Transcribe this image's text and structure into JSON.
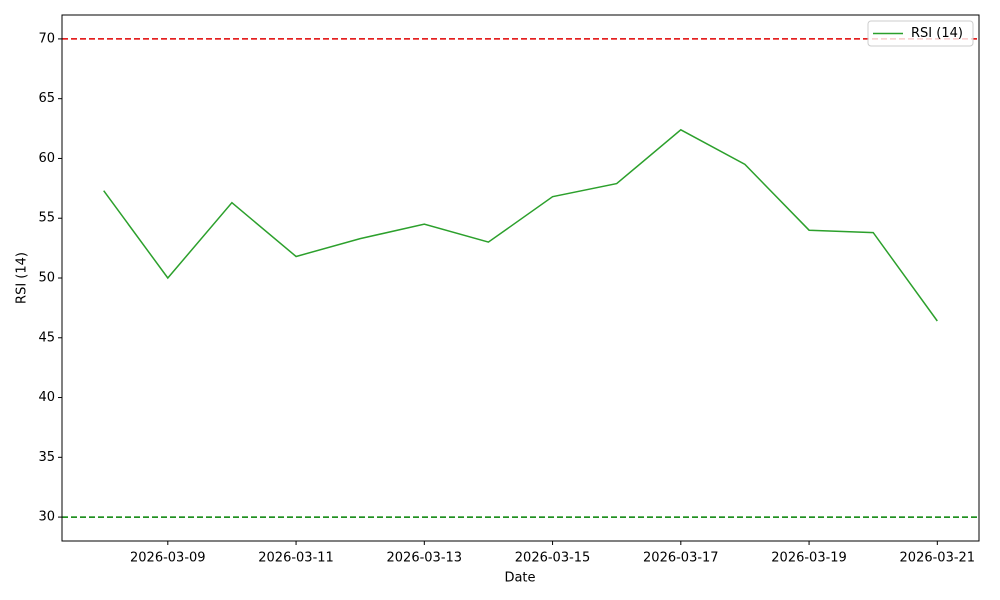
{
  "chart_data": {
    "type": "line",
    "xlabel": "Date",
    "ylabel": "RSI (14)",
    "x": [
      "2026-03-08",
      "2026-03-09",
      "2026-03-10",
      "2026-03-11",
      "2026-03-12",
      "2026-03-13",
      "2026-03-14",
      "2026-03-15",
      "2026-03-16",
      "2026-03-17",
      "2026-03-18",
      "2026-03-19",
      "2026-03-20",
      "2026-03-21"
    ],
    "series": [
      {
        "name": "RSI (14)",
        "color": "#2ca02c",
        "values": [
          57.3,
          50.0,
          56.3,
          51.8,
          53.3,
          54.5,
          53.0,
          56.8,
          57.9,
          62.4,
          59.5,
          54.0,
          53.8,
          46.4
        ]
      }
    ],
    "hlines": [
      {
        "value": 70,
        "color": "#e00000"
      },
      {
        "value": 30,
        "color": "#008000"
      }
    ],
    "xlim": [
      "2026-03-07T08:24",
      "2026-03-21T15:36"
    ],
    "xticks": [
      "2026-03-09",
      "2026-03-11",
      "2026-03-13",
      "2026-03-15",
      "2026-03-17",
      "2026-03-19",
      "2026-03-21"
    ],
    "ylim": [
      28,
      72
    ],
    "yticks": [
      30,
      35,
      40,
      45,
      50,
      55,
      60,
      65,
      70
    ],
    "legend": "upper right"
  }
}
